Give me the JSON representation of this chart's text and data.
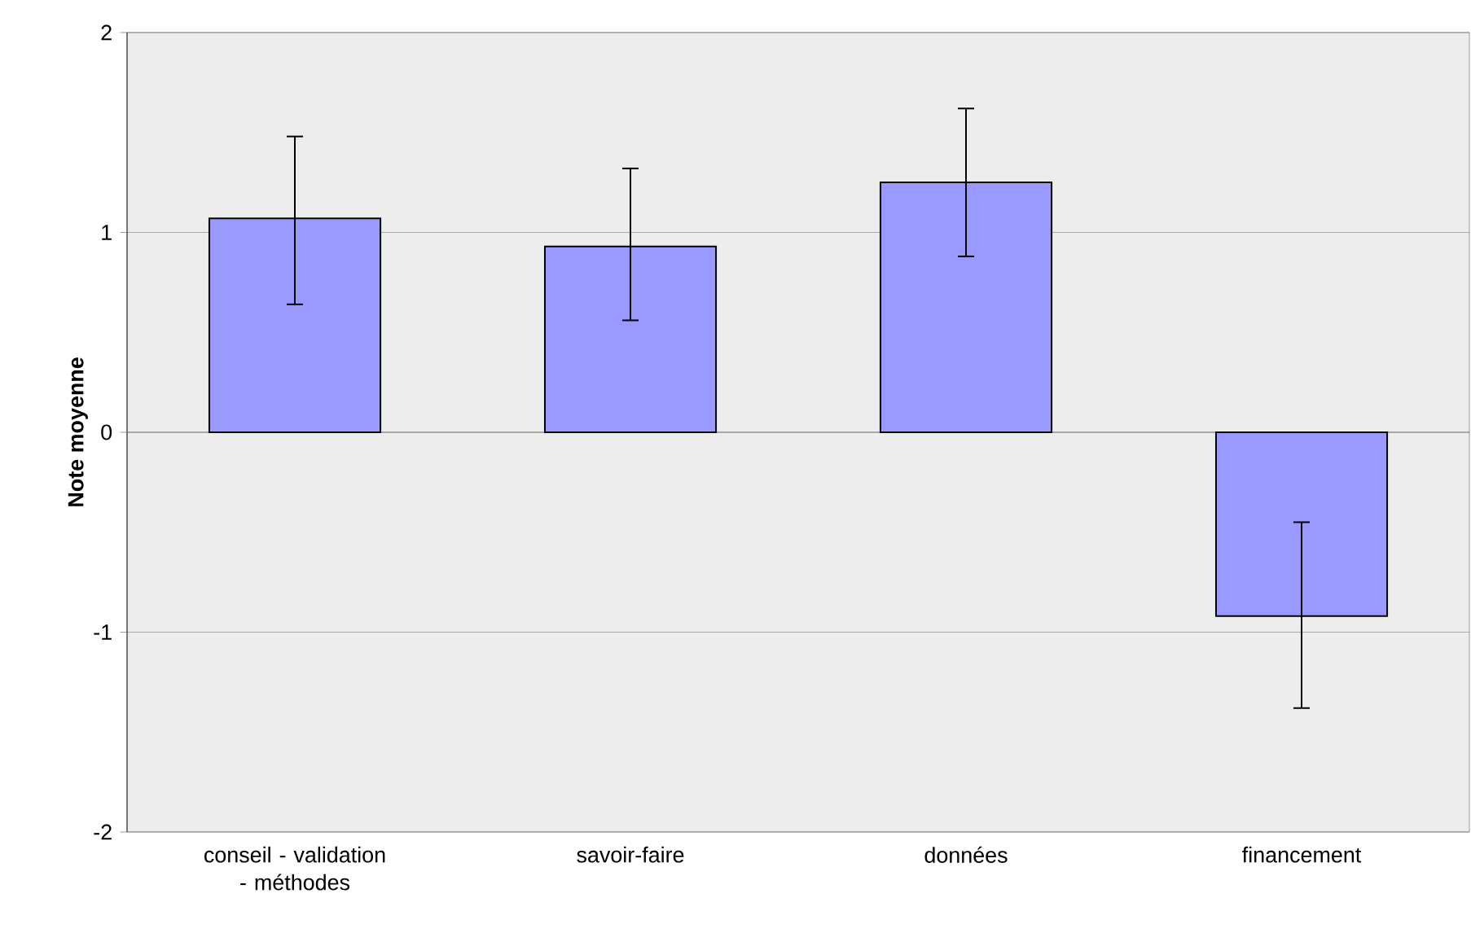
{
  "chart_data": {
    "type": "bar",
    "ylabel": "Note moyenne",
    "categories": [
      "conseil - validation - méthodes",
      "savoir-faire",
      "données",
      "financement"
    ],
    "values": [
      1.07,
      0.93,
      1.25,
      -0.92
    ],
    "errors": [
      [
        0.64,
        1.48
      ],
      [
        0.56,
        1.32
      ],
      [
        0.88,
        1.62
      ],
      [
        -1.38,
        -0.45
      ]
    ],
    "color": "#9999ff",
    "ylim": [
      -2,
      2
    ],
    "yticks": [
      -2,
      -1,
      0,
      1,
      2
    ],
    "grid": "y"
  }
}
